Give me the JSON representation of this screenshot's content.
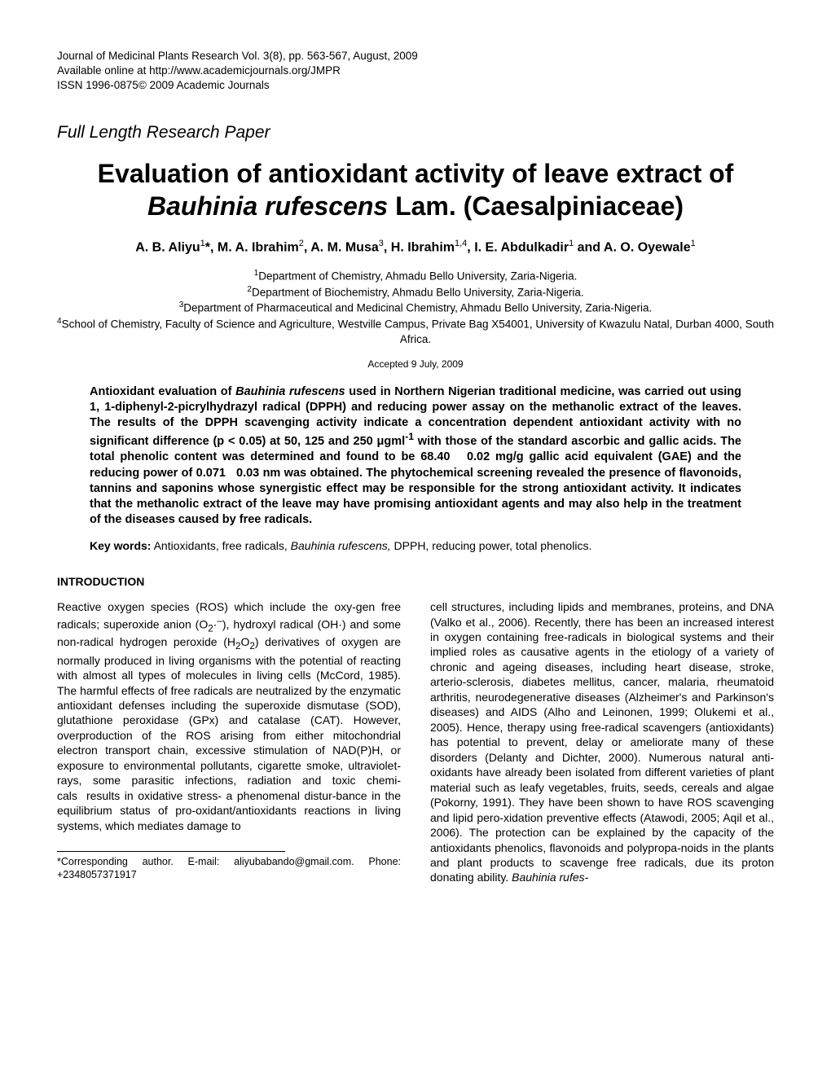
{
  "header": {
    "journal_line": "Journal of Medicinal Plants Research Vol. 3(8), pp. 563-567, August, 2009",
    "online_line": "Available online at http://www.academicjournals.org/JMPR",
    "issn_line": "ISSN 1996-0875© 2009 Academic Journals"
  },
  "paper_type": "Full Length Research Paper",
  "title": {
    "line1": "Evaluation of antioxidant activity of leave extract of",
    "species": "Bauhinia rufescens",
    "tail": " Lam. (Caesalpiniaceae)"
  },
  "authors_html": "A. B. Aliyu<sup>1</sup>*, M. A. Ibrahim<sup>2</sup>, A. M. Musa<sup>3</sup>, H. Ibrahim<sup>1,4</sup>, I. E. Abdulkadir<sup>1</sup> and A. O. Oyewale<sup>1</sup>",
  "affiliations": [
    "<sup>1</sup>Department of Chemistry, Ahmadu Bello University, Zaria-Nigeria.",
    "<sup>2</sup>Department of Biochemistry, Ahmadu Bello University, Zaria-Nigeria.",
    "<sup>3</sup>Department of Pharmaceutical and Medicinal Chemistry, Ahmadu Bello University, Zaria-Nigeria.",
    "<sup>4</sup>School of Chemistry, Faculty of Science and Agriculture, Westville Campus, Private Bag X54001, University of Kwazulu Natal, Durban 4000, South Africa."
  ],
  "accepted": "Accepted 9 July, 2009",
  "abstract": "Antioxidant evaluation of <span class=\"species\">Bauhinia rufescens</span> used in Northern Nigerian traditional medicine, was carried out using 1, 1-diphenyl-2-picrylhydrazyl radical (DPPH) and reducing power assay on the methanolic extract of the leaves. The results of the DPPH scavenging activity indicate a concentration dependent antioxidant activity with no significant difference (p &lt; 0.05) at 50, 125 and 250 &mu;gml<sup>-1</sup> with those of the standard ascorbic and gallic acids. The total phenolic content was determined and found to be 68.40&nbsp;&nbsp;&nbsp;0.02 mg/g gallic acid equivalent (GAE) and the reducing power of 0.071&nbsp;&nbsp;&nbsp;0.03 nm was obtained. The phytochemical screening revealed the presence of flavonoids, tannins and saponins whose synergistic effect may be responsible for the strong antioxidant activity. It indicates that the methanolic extract of the leave may have promising antioxidant agents and may also help in the treatment of the diseases caused by free radicals.",
  "keywords": {
    "label": "Key words:",
    "text": " Antioxidants, free radicals, <span class=\"species\">Bauhinia rufescens,</span> DPPH, reducing power, total phenolics."
  },
  "section_heading": "INTRODUCTION",
  "body_left": "Reactive oxygen species (ROS) which include the oxy-gen free radicals; superoxide anion (O<sub>2</sub>·<sup>–</sup>), hydroxyl radical (OH·) and some non-radical hydrogen peroxide (H<sub>2</sub>O<sub>2</sub>) derivatives of oxygen are normally produced in living organisms with the potential of reacting with almost all types of molecules in living cells (McCord, 1985). The harmful effects of free radicals are neutralized by the enzymatic antioxidant defenses including the superoxide dismutase (SOD), glutathione peroxidase (GPx) and catalase (CAT). However, overproduction of the ROS arising from either mitochondrial electron transport chain, excessive stimulation of NAD(P)H, or exposure to environmental pollutants, cigarette smoke, ultraviolet-rays, some parasitic infections, radiation and toxic chemi-cals&nbsp;&nbsp;results in oxidative stress- a phenomenal distur-bance in the equilibrium status of pro-oxidant/antioxidants reactions in living systems, which mediates damage to",
  "body_right": "cell structures, including lipids and membranes, proteins, and DNA (Valko et al., 2006). Recently, there has been an increased interest in oxygen containing free-radicals in biological systems and their implied roles as causative agents in the etiology of a variety of chronic and ageing diseases, including heart disease, stroke, arterio-sclerosis, diabetes mellitus, cancer, malaria, rheumatoid arthritis, neurodegenerative diseases (Alzheimer's and Parkinson's diseases) and AIDS (Alho and Leinonen, 1999; Olukemi et al., 2005). Hence, therapy using free-radical scavengers (antioxidants) has potential to prevent, delay or ameliorate many of these disorders (Delanty and Dichter, 2000). Numerous natural anti-oxidants have already been isolated from different varieties of plant material such as leafy vegetables, fruits, seeds, cereals and algae (Pokorny, 1991). They have been shown to have ROS scavenging and lipid pero-xidation preventive effects (Atawodi, 2005; Aqil et al., 2006). The protection can be explained by the capacity of the antioxidants phenolics, flavonoids and polypropa-noids in the plants and plant products to scavenge free radicals, due its proton donating ability. <span class=\"species\">Bauhinia rufes-</span>",
  "footnote": {
    "line1": "*Corresponding author. E-mail: aliyubabando@gmail.com.",
    "line2": "Phone: +2348057371917"
  },
  "colors": {
    "text": "#000000",
    "background": "#ffffff"
  }
}
